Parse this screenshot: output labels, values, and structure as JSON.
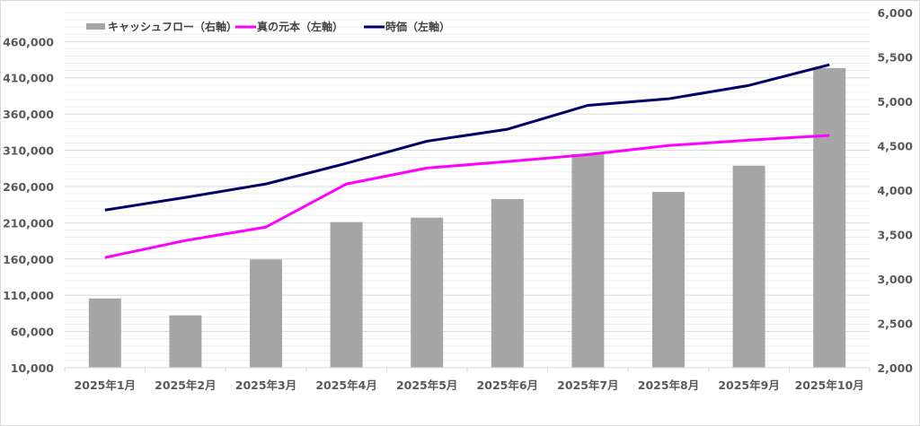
{
  "chart_data": {
    "type": "bar+line",
    "title": "",
    "categories": [
      "2025年1月",
      "2025年2月",
      "2025年3月",
      "2025年4月",
      "2025年5月",
      "2025年6月",
      "2025年7月",
      "2025年8月",
      "2025年9月",
      "2025年10月"
    ],
    "series": [
      {
        "name": "キャッシュフロー（右軸）",
        "type": "bar",
        "axis": "right",
        "color": "#a6a6a6",
        "values": [
          2780,
          2590,
          3220,
          3640,
          3690,
          3900,
          4405,
          3980,
          4275,
          5375
        ]
      },
      {
        "name": "真の元本（左軸）",
        "type": "line",
        "axis": "left",
        "color": "#ff00ff",
        "values": [
          162000,
          185500,
          204000,
          263500,
          285500,
          294500,
          304000,
          316500,
          324000,
          330500
        ]
      },
      {
        "name": "時価（左軸）",
        "type": "line",
        "axis": "left",
        "color": "#000066",
        "values": [
          227500,
          245000,
          263500,
          292000,
          322500,
          339000,
          372000,
          381000,
          399500,
          428000
        ]
      }
    ],
    "left_axis": {
      "ylim": [
        10000,
        500000
      ],
      "ticks": [
        "10,000",
        "60,000",
        "110,000",
        "160,000",
        "210,000",
        "260,000",
        "310,000",
        "360,000",
        "410,000",
        "460,000"
      ],
      "tick_values": [
        10000,
        60000,
        110000,
        160000,
        210000,
        260000,
        310000,
        360000,
        410000,
        460000
      ]
    },
    "right_axis": {
      "ylim": [
        2000,
        6000
      ],
      "ticks": [
        "2,000",
        "2,500",
        "3,000",
        "3,500",
        "4,000",
        "4,500",
        "5,000",
        "5,500",
        "6,000"
      ],
      "tick_values": [
        2000,
        2500,
        3000,
        3500,
        4000,
        4500,
        5000,
        5500,
        6000
      ]
    },
    "grid": true,
    "legend": "top-left"
  }
}
